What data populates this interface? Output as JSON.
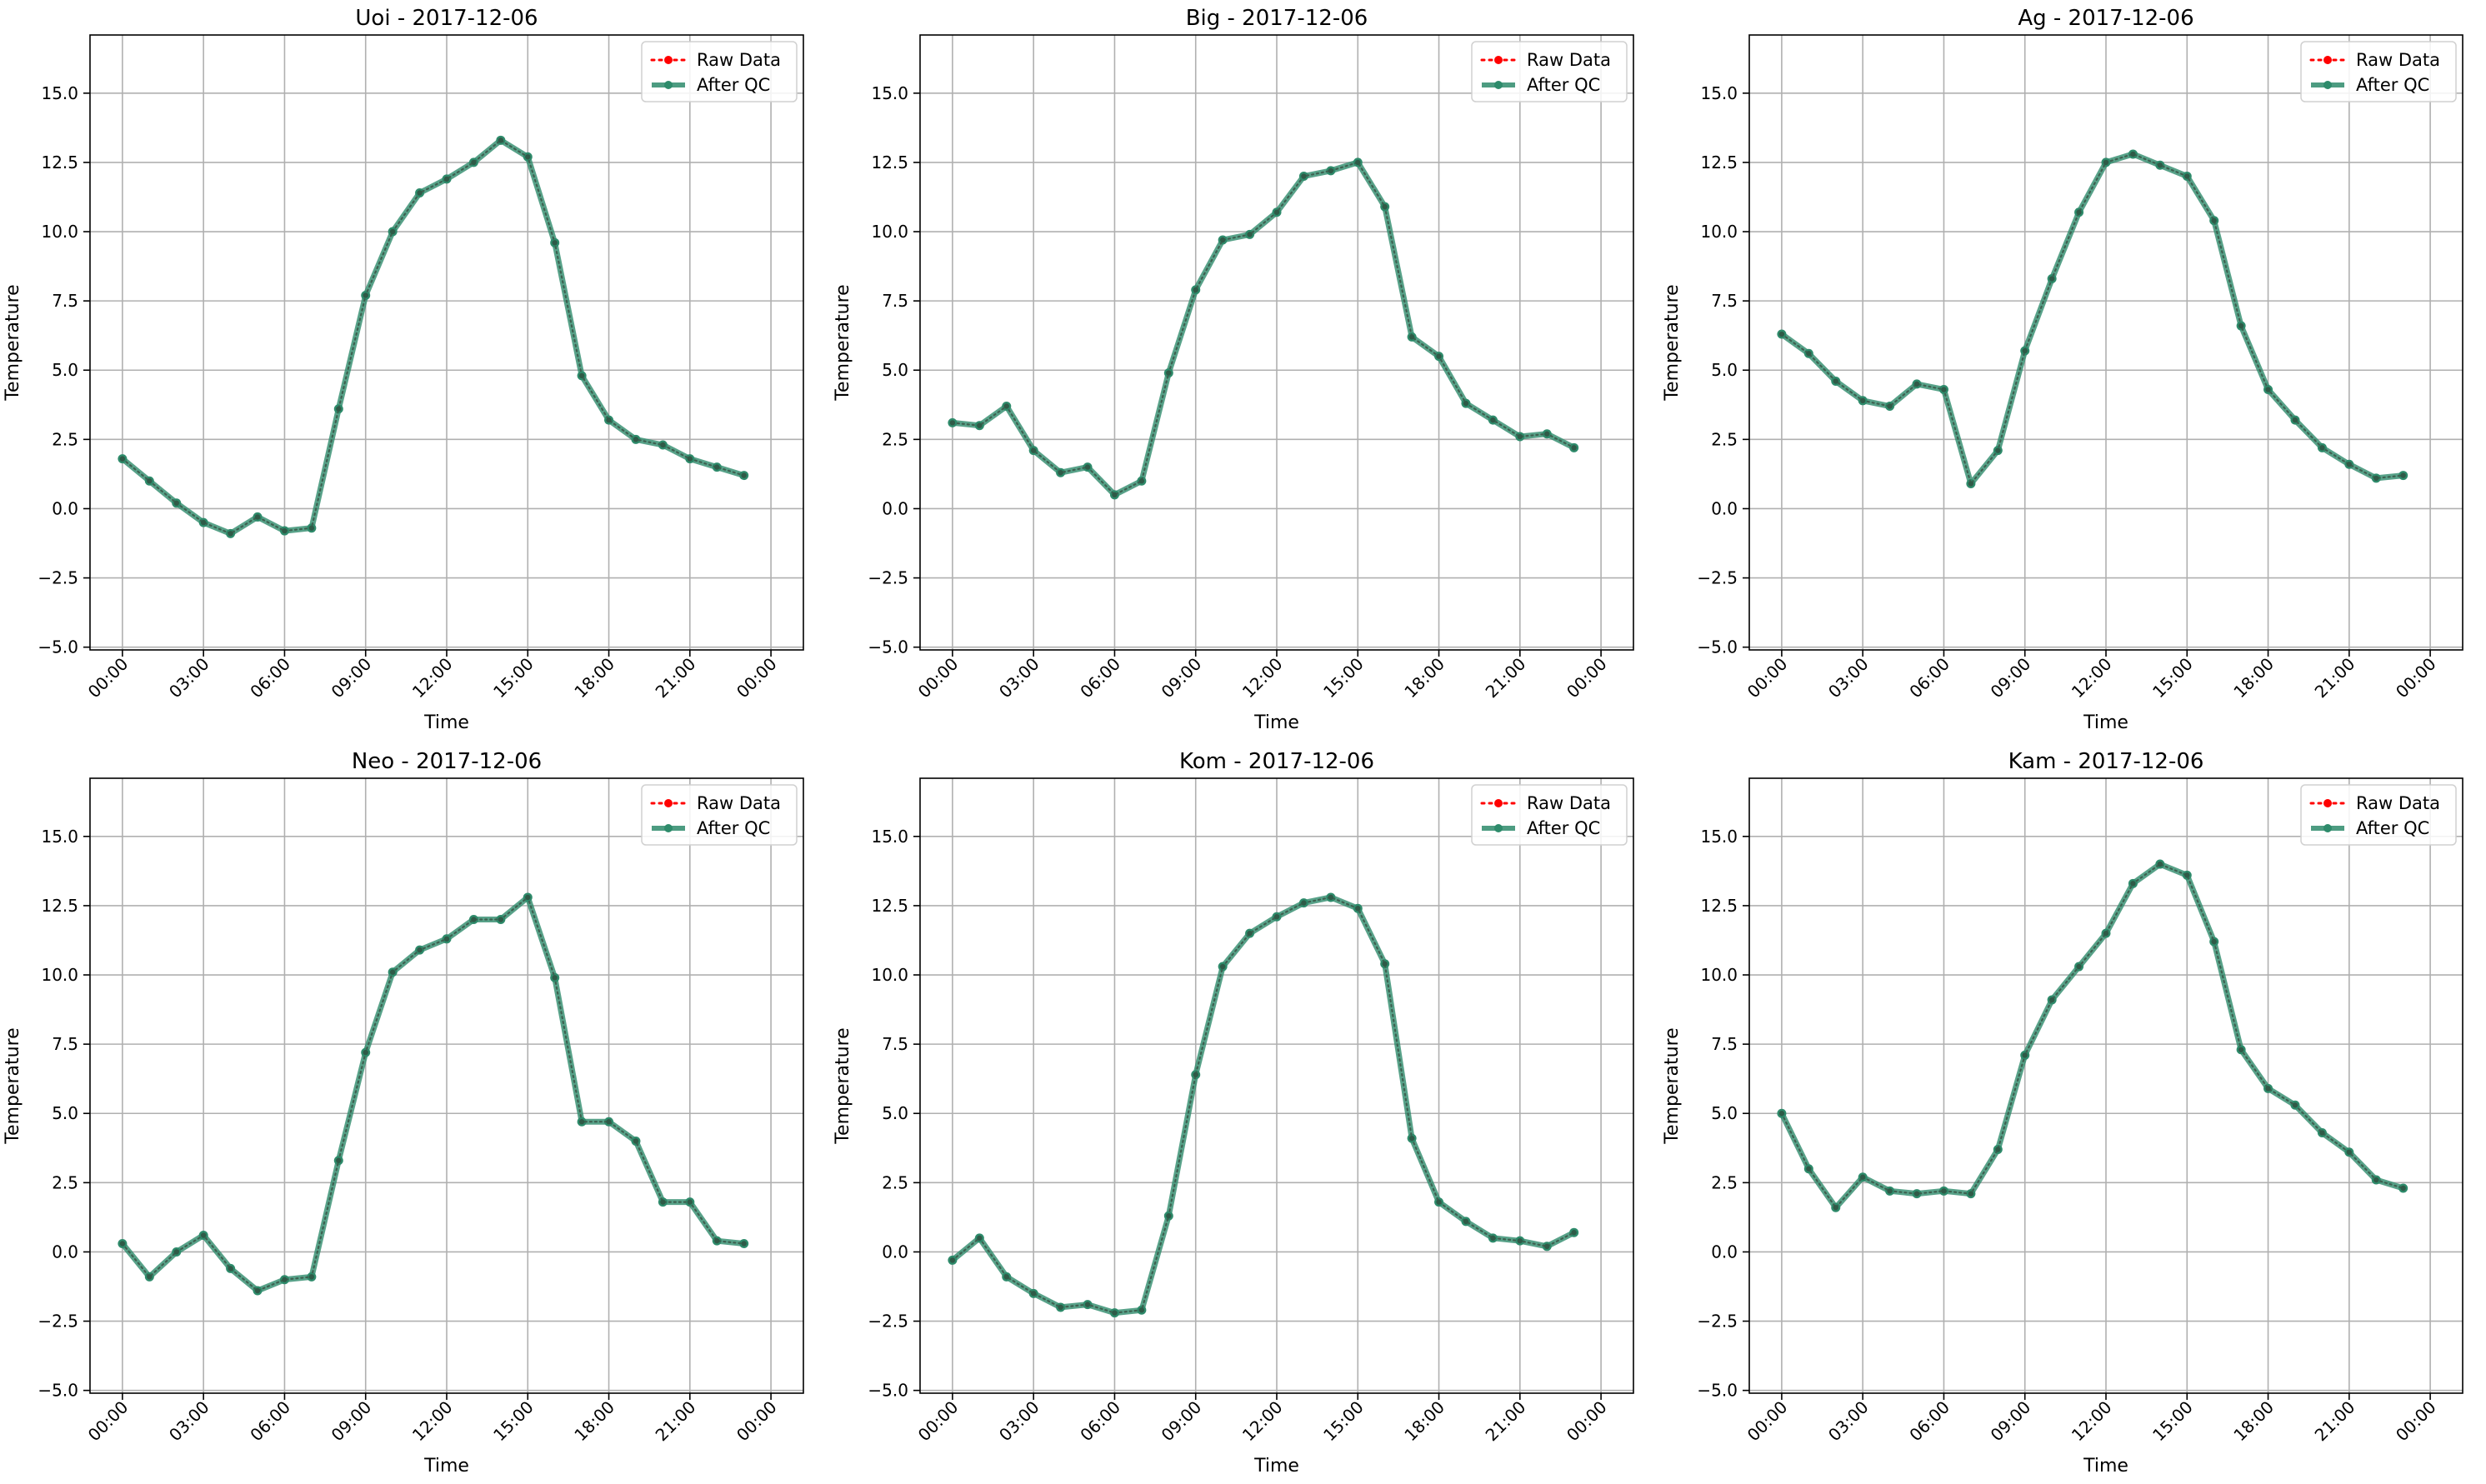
{
  "figure": {
    "background": "#ffffff"
  },
  "colors": {
    "raw": "#ff0000",
    "qc": "#2e8b6b",
    "grid": "#b0b0b0"
  },
  "legend": {
    "placement": "upper-right",
    "raw_label": "Raw Data",
    "qc_label": "After QC"
  },
  "chart_data": [
    {
      "type": "line",
      "title": "Uoi - 2017-12-06",
      "xlabel": "Time",
      "ylabel": "Temperature",
      "ylim": [
        -5.1,
        17.1
      ],
      "xlim": [
        "00:00",
        "00:00"
      ],
      "yticks": [
        "−5.0",
        "−2.5",
        "0.0",
        "2.5",
        "5.0",
        "7.5",
        "10.0",
        "12.5",
        "15.0"
      ],
      "xticks": [
        "00:00",
        "03:00",
        "06:00",
        "09:00",
        "12:00",
        "15:00",
        "18:00",
        "21:00",
        "00:00"
      ],
      "grid": true,
      "x": [
        "00:00",
        "01:00",
        "02:00",
        "03:00",
        "04:00",
        "05:00",
        "06:00",
        "07:00",
        "08:00",
        "09:00",
        "10:00",
        "11:00",
        "12:00",
        "13:00",
        "14:00",
        "15:00",
        "16:00",
        "17:00",
        "18:00",
        "19:00",
        "20:00",
        "21:00",
        "22:00",
        "23:00"
      ],
      "series": [
        {
          "name": "Raw Data",
          "values": [
            1.8,
            1.0,
            0.2,
            -0.5,
            -0.9,
            -0.3,
            -0.8,
            -0.7,
            3.6,
            7.7,
            10.0,
            11.4,
            11.9,
            12.5,
            13.3,
            12.7,
            9.6,
            4.8,
            3.2,
            2.5,
            2.3,
            1.8,
            1.5,
            1.2
          ]
        },
        {
          "name": "After QC",
          "values": [
            1.8,
            1.0,
            0.2,
            -0.5,
            -0.9,
            -0.3,
            -0.8,
            -0.7,
            3.6,
            7.7,
            10.0,
            11.4,
            11.9,
            12.5,
            13.3,
            12.7,
            9.6,
            4.8,
            3.2,
            2.5,
            2.3,
            1.8,
            1.5,
            1.2
          ]
        }
      ]
    },
    {
      "type": "line",
      "title": "Big - 2017-12-06",
      "xlabel": "Time",
      "ylabel": "Temperature",
      "ylim": [
        -5.1,
        17.1
      ],
      "xlim": [
        "00:00",
        "00:00"
      ],
      "yticks": [
        "−5.0",
        "−2.5",
        "0.0",
        "2.5",
        "5.0",
        "7.5",
        "10.0",
        "12.5",
        "15.0"
      ],
      "xticks": [
        "00:00",
        "03:00",
        "06:00",
        "09:00",
        "12:00",
        "15:00",
        "18:00",
        "21:00",
        "00:00"
      ],
      "grid": true,
      "x": [
        "00:00",
        "01:00",
        "02:00",
        "03:00",
        "04:00",
        "05:00",
        "06:00",
        "07:00",
        "08:00",
        "09:00",
        "10:00",
        "11:00",
        "12:00",
        "13:00",
        "14:00",
        "15:00",
        "16:00",
        "17:00",
        "18:00",
        "19:00",
        "20:00",
        "21:00",
        "22:00",
        "23:00"
      ],
      "series": [
        {
          "name": "Raw Data",
          "values": [
            3.1,
            3.0,
            3.7,
            2.1,
            1.3,
            1.5,
            0.5,
            1.0,
            4.9,
            7.9,
            9.7,
            9.9,
            10.7,
            12.0,
            12.2,
            12.5,
            10.9,
            6.2,
            5.5,
            3.8,
            3.2,
            2.6,
            2.7,
            2.2
          ]
        },
        {
          "name": "After QC",
          "values": [
            3.1,
            3.0,
            3.7,
            2.1,
            1.3,
            1.5,
            0.5,
            1.0,
            4.9,
            7.9,
            9.7,
            9.9,
            10.7,
            12.0,
            12.2,
            12.5,
            10.9,
            6.2,
            5.5,
            3.8,
            3.2,
            2.6,
            2.7,
            2.2
          ]
        }
      ]
    },
    {
      "type": "line",
      "title": "Ag - 2017-12-06",
      "xlabel": "Time",
      "ylabel": "Temperature",
      "ylim": [
        -5.1,
        17.1
      ],
      "xlim": [
        "00:00",
        "00:00"
      ],
      "yticks": [
        "−5.0",
        "−2.5",
        "0.0",
        "2.5",
        "5.0",
        "7.5",
        "10.0",
        "12.5",
        "15.0"
      ],
      "xticks": [
        "00:00",
        "03:00",
        "06:00",
        "09:00",
        "12:00",
        "15:00",
        "18:00",
        "21:00",
        "00:00"
      ],
      "grid": true,
      "x": [
        "00:00",
        "01:00",
        "02:00",
        "03:00",
        "04:00",
        "05:00",
        "06:00",
        "07:00",
        "08:00",
        "09:00",
        "10:00",
        "11:00",
        "12:00",
        "13:00",
        "14:00",
        "15:00",
        "16:00",
        "17:00",
        "18:00",
        "19:00",
        "20:00",
        "21:00",
        "22:00",
        "23:00"
      ],
      "series": [
        {
          "name": "Raw Data",
          "values": [
            6.3,
            5.6,
            4.6,
            3.9,
            3.7,
            4.5,
            4.3,
            0.9,
            2.1,
            5.7,
            8.3,
            10.7,
            12.5,
            12.8,
            12.4,
            12.0,
            10.4,
            6.6,
            4.3,
            3.2,
            2.2,
            1.6,
            1.1,
            1.2
          ]
        },
        {
          "name": "After QC",
          "values": [
            6.3,
            5.6,
            4.6,
            3.9,
            3.7,
            4.5,
            4.3,
            0.9,
            2.1,
            5.7,
            8.3,
            10.7,
            12.5,
            12.8,
            12.4,
            12.0,
            10.4,
            6.6,
            4.3,
            3.2,
            2.2,
            1.6,
            1.1,
            1.2
          ]
        }
      ]
    },
    {
      "type": "line",
      "title": "Neo - 2017-12-06",
      "xlabel": "Time",
      "ylabel": "Temperature",
      "ylim": [
        -5.1,
        17.1
      ],
      "xlim": [
        "00:00",
        "00:00"
      ],
      "yticks": [
        "−5.0",
        "−2.5",
        "0.0",
        "2.5",
        "5.0",
        "7.5",
        "10.0",
        "12.5",
        "15.0"
      ],
      "xticks": [
        "00:00",
        "03:00",
        "06:00",
        "09:00",
        "12:00",
        "15:00",
        "18:00",
        "21:00",
        "00:00"
      ],
      "grid": true,
      "x": [
        "00:00",
        "01:00",
        "02:00",
        "03:00",
        "04:00",
        "05:00",
        "06:00",
        "07:00",
        "08:00",
        "09:00",
        "10:00",
        "11:00",
        "12:00",
        "13:00",
        "14:00",
        "15:00",
        "16:00",
        "17:00",
        "18:00",
        "19:00",
        "20:00",
        "21:00",
        "22:00",
        "23:00"
      ],
      "series": [
        {
          "name": "Raw Data",
          "values": [
            0.3,
            -0.9,
            0.0,
            0.6,
            -0.6,
            -1.4,
            -1.0,
            -0.9,
            3.3,
            7.2,
            10.1,
            10.9,
            11.3,
            12.0,
            12.0,
            12.8,
            9.9,
            4.7,
            4.7,
            4.0,
            1.8,
            1.8,
            0.4,
            0.3
          ]
        },
        {
          "name": "After QC",
          "values": [
            0.3,
            -0.9,
            0.0,
            0.6,
            -0.6,
            -1.4,
            -1.0,
            -0.9,
            3.3,
            7.2,
            10.1,
            10.9,
            11.3,
            12.0,
            12.0,
            12.8,
            9.9,
            4.7,
            4.7,
            4.0,
            1.8,
            1.8,
            0.4,
            0.3
          ]
        }
      ]
    },
    {
      "type": "line",
      "title": "Kom - 2017-12-06",
      "xlabel": "Time",
      "ylabel": "Temperature",
      "ylim": [
        -5.1,
        17.1
      ],
      "xlim": [
        "00:00",
        "00:00"
      ],
      "yticks": [
        "−5.0",
        "−2.5",
        "0.0",
        "2.5",
        "5.0",
        "7.5",
        "10.0",
        "12.5",
        "15.0"
      ],
      "xticks": [
        "00:00",
        "03:00",
        "06:00",
        "09:00",
        "12:00",
        "15:00",
        "18:00",
        "21:00",
        "00:00"
      ],
      "grid": true,
      "x": [
        "00:00",
        "01:00",
        "02:00",
        "03:00",
        "04:00",
        "05:00",
        "06:00",
        "07:00",
        "08:00",
        "09:00",
        "10:00",
        "11:00",
        "12:00",
        "13:00",
        "14:00",
        "15:00",
        "16:00",
        "17:00",
        "18:00",
        "19:00",
        "20:00",
        "21:00",
        "22:00",
        "23:00"
      ],
      "series": [
        {
          "name": "Raw Data",
          "values": [
            -0.3,
            0.5,
            -0.9,
            -1.5,
            -2.0,
            -1.9,
            -2.2,
            -2.1,
            1.3,
            6.4,
            10.3,
            11.5,
            12.1,
            12.6,
            12.8,
            12.4,
            10.4,
            4.1,
            1.8,
            1.1,
            0.5,
            0.4,
            0.2,
            0.7
          ]
        },
        {
          "name": "After QC",
          "values": [
            -0.3,
            0.5,
            -0.9,
            -1.5,
            -2.0,
            -1.9,
            -2.2,
            -2.1,
            1.3,
            6.4,
            10.3,
            11.5,
            12.1,
            12.6,
            12.8,
            12.4,
            10.4,
            4.1,
            1.8,
            1.1,
            0.5,
            0.4,
            0.2,
            0.7
          ]
        }
      ]
    },
    {
      "type": "line",
      "title": "Kam - 2017-12-06",
      "xlabel": "Time",
      "ylabel": "Temperature",
      "ylim": [
        -5.1,
        17.1
      ],
      "xlim": [
        "00:00",
        "00:00"
      ],
      "yticks": [
        "−5.0",
        "−2.5",
        "0.0",
        "2.5",
        "5.0",
        "7.5",
        "10.0",
        "12.5",
        "15.0"
      ],
      "xticks": [
        "00:00",
        "03:00",
        "06:00",
        "09:00",
        "12:00",
        "15:00",
        "18:00",
        "21:00",
        "00:00"
      ],
      "grid": true,
      "x": [
        "00:00",
        "01:00",
        "02:00",
        "03:00",
        "04:00",
        "05:00",
        "06:00",
        "07:00",
        "08:00",
        "09:00",
        "10:00",
        "11:00",
        "12:00",
        "13:00",
        "14:00",
        "15:00",
        "16:00",
        "17:00",
        "18:00",
        "19:00",
        "20:00",
        "21:00",
        "22:00",
        "23:00"
      ],
      "series": [
        {
          "name": "Raw Data",
          "values": [
            5.0,
            3.0,
            1.6,
            2.7,
            2.2,
            2.1,
            2.2,
            2.1,
            3.7,
            7.1,
            9.1,
            10.3,
            11.5,
            13.3,
            14.0,
            13.6,
            11.2,
            7.3,
            5.9,
            5.3,
            4.3,
            3.6,
            2.6,
            2.3
          ]
        },
        {
          "name": "After QC",
          "values": [
            5.0,
            3.0,
            1.6,
            2.7,
            2.2,
            2.1,
            2.2,
            2.1,
            3.7,
            7.1,
            9.1,
            10.3,
            11.5,
            13.3,
            14.0,
            13.6,
            11.2,
            7.3,
            5.9,
            5.3,
            4.3,
            3.6,
            2.6,
            2.3
          ]
        }
      ]
    }
  ]
}
